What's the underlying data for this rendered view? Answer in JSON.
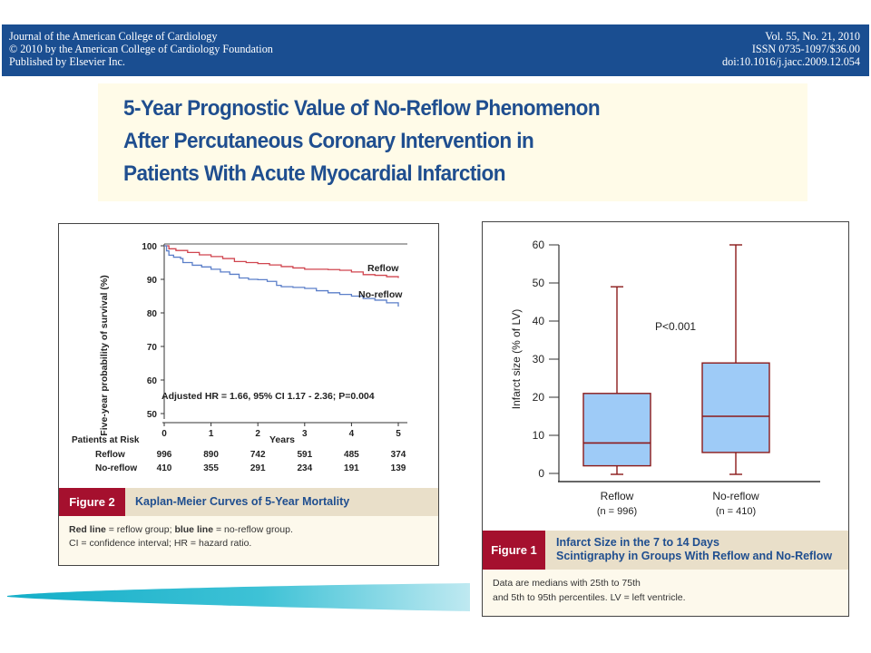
{
  "header": {
    "left_lines": [
      "Journal of the American College of Cardiology",
      "© 2010 by the American College of Cardiology Foundation",
      "Published by Elsevier Inc."
    ],
    "right_lines": [
      "Vol. 55, No. 21, 2010",
      "ISSN 0735-1097/$36.00",
      "doi:10.1016/j.jacc.2009.12.054"
    ]
  },
  "title": {
    "lines": [
      "5-Year Prognostic Value of No-Reflow Phenomenon",
      "After Percutaneous Coronary Intervention in",
      "Patients With Acute Myocardial Infarction"
    ]
  },
  "figure2": {
    "label": "Figure 2",
    "caption_title": "Kaplan-Meier Curves of 5-Year Mortality",
    "notes_line1_bold1": "Red line",
    "notes_line1_rest1": " = reflow group; ",
    "notes_line1_bold2": "blue line",
    "notes_line1_rest2": " = no-reflow group.",
    "notes_line2": "CI = confidence interval; HR = hazard ratio.",
    "risk_table": {
      "header": "Patients at Risk",
      "rows": [
        {
          "label": "Reflow",
          "values": [
            "996",
            "890",
            "742",
            "591",
            "485",
            "374"
          ]
        },
        {
          "label": "No-reflow",
          "values": [
            "410",
            "355",
            "291",
            "234",
            "191",
            "139"
          ]
        }
      ]
    }
  },
  "figure1": {
    "label": "Figure 1",
    "caption_title_lines": [
      "Infarct Size in the 7 to 14 Days",
      "Scintigraphy in Groups With Reflow and No-Reflow"
    ],
    "notes_lines": [
      "Data are medians with 25th to 75th",
      "and 5th to 95th percentiles. LV = left ventricle."
    ]
  },
  "colors": {
    "header_bg": "#1a4e91",
    "title_text": "#1f4e8f",
    "figure_label_bg": "#a5102e",
    "caption_bar_bg": "#e9dfc9",
    "reflow_line": "#d0454f",
    "noreflow_line": "#5b7fc9",
    "box_fill": "#9ecbf7",
    "box_stroke": "#8b1a1a",
    "swoosh": "#1bb3cc"
  },
  "chart_data": [
    {
      "type": "line",
      "title": "Kaplan-Meier Curves of 5-Year Mortality",
      "xlabel": "Years",
      "ylabel": "Five-year probability of survival (%)",
      "xlim": [
        0,
        5
      ],
      "ylim": [
        50,
        100
      ],
      "x_ticks": [
        "0",
        "1",
        "2",
        "3",
        "4",
        "5"
      ],
      "y_ticks": [
        "50",
        "60",
        "70",
        "80",
        "90",
        "100"
      ],
      "annotation": "Adjusted HR = 1.66, 95% CI 1.17 - 2.36; P=0.004",
      "grid": false,
      "series": [
        {
          "name": "Reflow",
          "x": [
            0,
            0.1,
            0.25,
            0.5,
            0.75,
            1.0,
            1.25,
            1.5,
            1.75,
            2.0,
            2.25,
            2.5,
            2.75,
            3.0,
            3.25,
            3.5,
            3.75,
            4.0,
            4.25,
            4.5,
            4.75,
            5.0
          ],
          "y": [
            100,
            99.1,
            98.6,
            98.0,
            97.3,
            96.8,
            96.2,
            95.3,
            95.0,
            94.7,
            94.3,
            93.8,
            93.4,
            93.0,
            93.0,
            92.9,
            92.7,
            92.2,
            91.4,
            91.2,
            90.8,
            90.4
          ]
        },
        {
          "name": "No-reflow",
          "x": [
            0,
            0.05,
            0.1,
            0.2,
            0.35,
            0.4,
            0.6,
            0.8,
            1.0,
            1.2,
            1.4,
            1.6,
            1.8,
            2.0,
            2.2,
            2.4,
            2.5,
            2.75,
            3.0,
            3.25,
            3.5,
            3.75,
            4.0,
            4.25,
            4.5,
            4.75,
            5.0
          ],
          "y": [
            100,
            98.5,
            97.2,
            96.6,
            96.2,
            95.0,
            94.2,
            93.7,
            93.0,
            92.2,
            91.5,
            90.4,
            90.0,
            89.9,
            89.4,
            88.2,
            87.8,
            87.6,
            87.3,
            86.6,
            86.0,
            85.5,
            85.0,
            84.3,
            83.8,
            83.0,
            81.9
          ]
        }
      ]
    },
    {
      "type": "box",
      "title": "Infarct Size in the 7 to 14 Days Scintigraphy in Groups With Reflow and No-Reflow",
      "xlabel": "",
      "ylabel": "Infarct size (% of LV)",
      "ylim": [
        0,
        60
      ],
      "y_ticks": [
        "0",
        "10",
        "20",
        "30",
        "40",
        "50",
        "60"
      ],
      "annotation": "P<0.001",
      "categories": [
        "Reflow",
        "No-reflow"
      ],
      "category_sublabels": [
        "(n = 996)",
        "(n = 410)"
      ],
      "series": [
        {
          "name": "Reflow",
          "p5": 0,
          "q1": 2,
          "median": 8,
          "q3": 21,
          "p95": 49
        },
        {
          "name": "No-reflow",
          "p5": 0,
          "q1": 5.5,
          "median": 15,
          "q3": 29,
          "p95": 60
        }
      ]
    }
  ]
}
